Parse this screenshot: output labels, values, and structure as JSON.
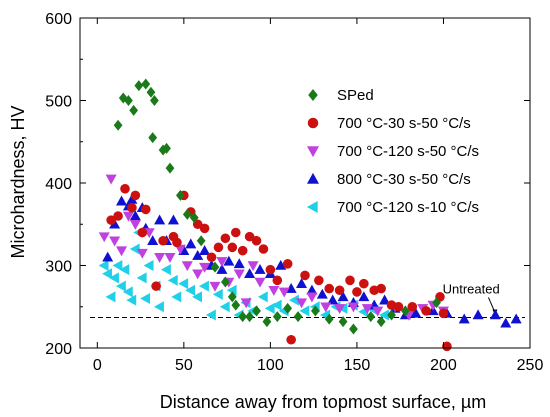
{
  "chart_data": {
    "type": "scatter",
    "xlabel": "Distance away from topmost surface, µm",
    "ylabel": "Microhardness, HV",
    "xlim": [
      -10,
      250
    ],
    "ylim": [
      200,
      600
    ],
    "x_ticks": [
      "0",
      "50",
      "100",
      "150",
      "200",
      "250"
    ],
    "y_ticks": [
      "200",
      "300",
      "400",
      "500",
      "600"
    ],
    "grid": false,
    "legend_position": "top-right",
    "series": [
      {
        "name": "SPed",
        "marker": "diamond",
        "color": "#1a7a1a",
        "points": [
          [
            12,
            470
          ],
          [
            15,
            503
          ],
          [
            18,
            500
          ],
          [
            21,
            488
          ],
          [
            24,
            518
          ],
          [
            28,
            520
          ],
          [
            31,
            510
          ],
          [
            33,
            500
          ],
          [
            32,
            455
          ],
          [
            38,
            440
          ],
          [
            40,
            442
          ],
          [
            42,
            418
          ],
          [
            48,
            385
          ],
          [
            52,
            362
          ],
          [
            56,
            358
          ],
          [
            60,
            330
          ],
          [
            68,
            298
          ],
          [
            74,
            280
          ],
          [
            78,
            262
          ],
          [
            80,
            252
          ],
          [
            84,
            238
          ],
          [
            88,
            238
          ],
          [
            92,
            245
          ],
          [
            98,
            232
          ],
          [
            104,
            238
          ],
          [
            110,
            248
          ],
          [
            116,
            238
          ],
          [
            126,
            245
          ],
          [
            134,
            235
          ],
          [
            142,
            232
          ],
          [
            148,
            223
          ],
          [
            158,
            238
          ],
          [
            164,
            232
          ],
          [
            170,
            240
          ],
          [
            178,
            245
          ],
          [
            196,
            255
          ]
        ]
      },
      {
        "name": "700 °C-30 s-50 °C/s",
        "marker": "circle",
        "color": "#cc1010",
        "points": [
          [
            8,
            355
          ],
          [
            12,
            360
          ],
          [
            16,
            393
          ],
          [
            20,
            370
          ],
          [
            22,
            385
          ],
          [
            26,
            340
          ],
          [
            28,
            368
          ],
          [
            34,
            275
          ],
          [
            38,
            330
          ],
          [
            44,
            335
          ],
          [
            46,
            328
          ],
          [
            50,
            385
          ],
          [
            54,
            365
          ],
          [
            58,
            350
          ],
          [
            62,
            345
          ],
          [
            66,
            310
          ],
          [
            70,
            322
          ],
          [
            74,
            333
          ],
          [
            78,
            322
          ],
          [
            80,
            340
          ],
          [
            84,
            318
          ],
          [
            88,
            335
          ],
          [
            92,
            330
          ],
          [
            96,
            320
          ],
          [
            100,
            295
          ],
          [
            104,
            282
          ],
          [
            110,
            302
          ],
          [
            112,
            210
          ],
          [
            120,
            288
          ],
          [
            128,
            282
          ],
          [
            134,
            272
          ],
          [
            140,
            270
          ],
          [
            146,
            282
          ],
          [
            150,
            268
          ],
          [
            154,
            278
          ],
          [
            160,
            270
          ],
          [
            164,
            272
          ],
          [
            170,
            252
          ],
          [
            174,
            250
          ],
          [
            182,
            250
          ],
          [
            190,
            245
          ],
          [
            198,
            262
          ],
          [
            200,
            242
          ],
          [
            202,
            202
          ]
        ]
      },
      {
        "name": "700 °C-120 s-50 °C/s",
        "marker": "triangle-down",
        "color": "#c040e0",
        "points": [
          [
            4,
            335
          ],
          [
            8,
            405
          ],
          [
            10,
            330
          ],
          [
            14,
            318
          ],
          [
            18,
            360
          ],
          [
            22,
            350
          ],
          [
            26,
            315
          ],
          [
            30,
            340
          ],
          [
            36,
            310
          ],
          [
            42,
            310
          ],
          [
            48,
            320
          ],
          [
            52,
            300
          ],
          [
            58,
            290
          ],
          [
            62,
            298
          ],
          [
            68,
            275
          ],
          [
            72,
            305
          ],
          [
            76,
            280
          ],
          [
            82,
            290
          ],
          [
            86,
            255
          ],
          [
            90,
            300
          ],
          [
            94,
            280
          ],
          [
            102,
            270
          ],
          [
            108,
            268
          ],
          [
            118,
            255
          ],
          [
            124,
            262
          ],
          [
            132,
            250
          ],
          [
            140,
            248
          ],
          [
            148,
            250
          ],
          [
            156,
            248
          ],
          [
            162,
            245
          ],
          [
            172,
            250
          ],
          [
            180,
            240
          ],
          [
            188,
            248
          ],
          [
            194,
            252
          ],
          [
            200,
            245
          ]
        ]
      },
      {
        "name": "800 °C-30 s-50 °C/s",
        "marker": "triangle-up",
        "color": "#1010d0",
        "points": [
          [
            6,
            310
          ],
          [
            10,
            350
          ],
          [
            14,
            378
          ],
          [
            18,
            372
          ],
          [
            20,
            380
          ],
          [
            22,
            360
          ],
          [
            26,
            370
          ],
          [
            28,
            345
          ],
          [
            32,
            330
          ],
          [
            36,
            355
          ],
          [
            40,
            330
          ],
          [
            44,
            355
          ],
          [
            50,
            318
          ],
          [
            54,
            326
          ],
          [
            58,
            312
          ],
          [
            62,
            318
          ],
          [
            66,
            300
          ],
          [
            72,
            295
          ],
          [
            76,
            305
          ],
          [
            82,
            302
          ],
          [
            88,
            290
          ],
          [
            94,
            295
          ],
          [
            100,
            290
          ],
          [
            106,
            300
          ],
          [
            112,
            272
          ],
          [
            118,
            278
          ],
          [
            124,
            270
          ],
          [
            130,
            265
          ],
          [
            136,
            258
          ],
          [
            142,
            262
          ],
          [
            148,
            255
          ],
          [
            154,
            262
          ],
          [
            160,
            252
          ],
          [
            166,
            258
          ],
          [
            172,
            248
          ],
          [
            178,
            240
          ],
          [
            184,
            242
          ],
          [
            194,
            245
          ],
          [
            202,
            242
          ],
          [
            212,
            235
          ],
          [
            220,
            240
          ],
          [
            230,
            240
          ],
          [
            236,
            230
          ],
          [
            242,
            235
          ]
        ]
      },
      {
        "name": "700 °C-120 s-10 °C/s",
        "marker": "triangle-left",
        "color": "#20d0e8",
        "points": [
          [
            4,
            300
          ],
          [
            6,
            290
          ],
          [
            8,
            262
          ],
          [
            10,
            285
          ],
          [
            12,
            300
          ],
          [
            14,
            275
          ],
          [
            16,
            295
          ],
          [
            18,
            268
          ],
          [
            20,
            258
          ],
          [
            22,
            320
          ],
          [
            24,
            340
          ],
          [
            26,
            285
          ],
          [
            28,
            260
          ],
          [
            30,
            300
          ],
          [
            34,
            275
          ],
          [
            36,
            250
          ],
          [
            40,
            295
          ],
          [
            44,
            282
          ],
          [
            46,
            262
          ],
          [
            50,
            278
          ],
          [
            54,
            270
          ],
          [
            58,
            262
          ],
          [
            62,
            275
          ],
          [
            66,
            240
          ],
          [
            70,
            265
          ],
          [
            74,
            250
          ],
          [
            78,
            270
          ],
          [
            82,
            240
          ],
          [
            86,
            255
          ],
          [
            90,
            245
          ],
          [
            96,
            262
          ],
          [
            100,
            248
          ],
          [
            104,
            252
          ],
          [
            108,
            245
          ],
          [
            114,
            258
          ],
          [
            120,
            245
          ],
          [
            126,
            250
          ],
          [
            132,
            240
          ],
          [
            138,
            250
          ],
          [
            142,
            248
          ],
          [
            148,
            252
          ],
          [
            154,
            244
          ],
          [
            160,
            246
          ],
          [
            166,
            240
          ]
        ]
      }
    ],
    "reference_line": {
      "y": 237,
      "label": "Untreated"
    }
  }
}
